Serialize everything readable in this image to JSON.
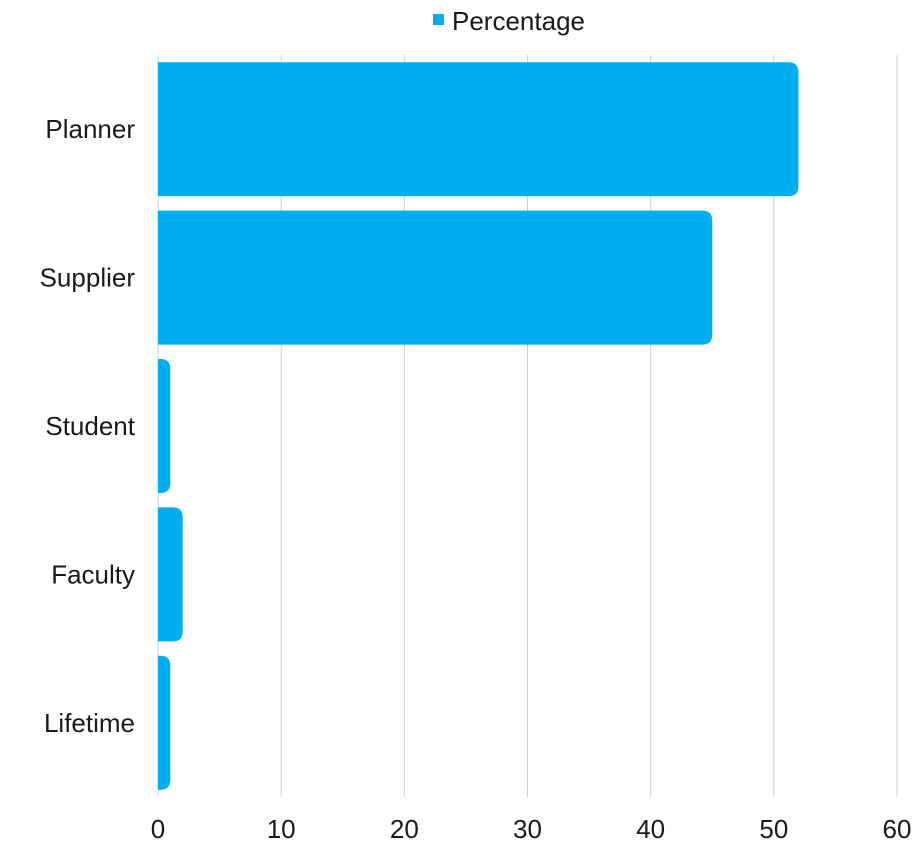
{
  "chart_data": {
    "type": "bar",
    "orientation": "horizontal",
    "categories": [
      "Planner",
      "Supplier",
      "Student",
      "Faculty",
      "Lifetime"
    ],
    "series": [
      {
        "name": "Percentage",
        "values": [
          52,
          45,
          1,
          2,
          1
        ],
        "color": "#00aeef"
      }
    ],
    "xlim": [
      0,
      60
    ],
    "x_ticks": [
      "0",
      "10",
      "20",
      "30",
      "40",
      "50",
      "60"
    ],
    "grid": "vertical",
    "legend": "top-center",
    "title": "",
    "xlabel": "",
    "ylabel": ""
  }
}
